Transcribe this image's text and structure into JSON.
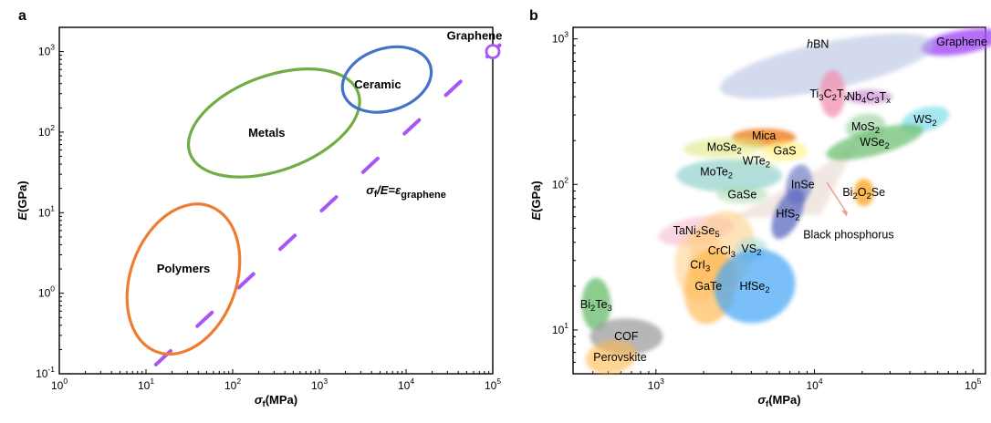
{
  "chart_data": [
    {
      "type": "scatter",
      "panel_label": "a",
      "xlabel": "σf(MPa)",
      "ylabel": "E(GPa)",
      "x_scale": "log",
      "y_scale": "log",
      "xlim": [
        1,
        100000
      ],
      "ylim": [
        0.1,
        2000
      ],
      "x_ticks": [
        {
          "value": 1,
          "base": "10",
          "exp": "0"
        },
        {
          "value": 10,
          "base": "10",
          "exp": "1"
        },
        {
          "value": 100,
          "base": "10",
          "exp": "2"
        },
        {
          "value": 1000,
          "base": "10",
          "exp": "3"
        },
        {
          "value": 10000,
          "base": "10",
          "exp": "4"
        },
        {
          "value": 100000,
          "base": "10",
          "exp": "5"
        }
      ],
      "y_ticks": [
        {
          "value": 0.1,
          "base": "10",
          "exp": "-1"
        },
        {
          "value": 1,
          "base": "10",
          "exp": "0"
        },
        {
          "value": 10,
          "base": "10",
          "exp": "1"
        },
        {
          "value": 100,
          "base": "10",
          "exp": "2"
        },
        {
          "value": 1000,
          "base": "10",
          "exp": "3"
        }
      ],
      "regions": [
        {
          "name": "Polymers",
          "x_center": 27,
          "y_center": 1.5,
          "color": "#ed7d31"
        },
        {
          "name": "Metals",
          "x_center": 300,
          "y_center": 130,
          "color": "#70ad47"
        },
        {
          "name": "Ceramic",
          "x_center": 6000,
          "y_center": 450,
          "color": "#4472c4"
        }
      ],
      "points": [
        {
          "name": "Graphene",
          "x": 100000,
          "y": 1000,
          "color": "#a855f7"
        }
      ],
      "reference_line": {
        "label_main": "σf/E=ε",
        "label_sub": "graphene",
        "color": "#a855f7",
        "from": [
          13,
          0.13
        ],
        "to": [
          120000,
          1200
        ]
      }
    },
    {
      "type": "scatter",
      "panel_label": "b",
      "xlabel": "σf(MPa)",
      "ylabel": "E(GPa)",
      "x_scale": "log",
      "y_scale": "log",
      "xlim": [
        300,
        120000
      ],
      "ylim": [
        5,
        1200
      ],
      "x_ticks": [
        {
          "value": 1000,
          "base": "10",
          "exp": "3"
        },
        {
          "value": 10000,
          "base": "10",
          "exp": "4"
        },
        {
          "value": 100000,
          "base": "10",
          "exp": "5"
        }
      ],
      "y_ticks": [
        {
          "value": 10,
          "base": "10",
          "exp": "1"
        },
        {
          "value": 100,
          "base": "10",
          "exp": "2"
        },
        {
          "value": 1000,
          "base": "10",
          "exp": "3"
        }
      ],
      "materials": [
        {
          "label": "Graphene",
          "x": 85000,
          "y": 950,
          "color": "#a855f7"
        },
        {
          "label": "hBN",
          "x": 12000,
          "y": 650,
          "color": "#b0bde0"
        },
        {
          "label": "Ti3C2Tx",
          "x": 13000,
          "y": 420,
          "color": "#f48fb1"
        },
        {
          "label": "Nb4C3Tx",
          "x": 22000,
          "y": 400,
          "color": "#ce93d8"
        },
        {
          "label": "MoS2",
          "x": 21000,
          "y": 250,
          "color": "#a5d6a7"
        },
        {
          "label": "WS2",
          "x": 50000,
          "y": 280,
          "color": "#80deea"
        },
        {
          "label": "WSe2",
          "x": 24000,
          "y": 195,
          "color": "#66bb6a"
        },
        {
          "label": "Mica",
          "x": 4800,
          "y": 210,
          "color": "#ef6c00"
        },
        {
          "label": "MoSe2",
          "x": 2700,
          "y": 180,
          "color": "#dce775"
        },
        {
          "label": "GaS",
          "x": 6500,
          "y": 170,
          "color": "#fff176"
        },
        {
          "label": "WTe2",
          "x": 4300,
          "y": 145,
          "color": "#fff9c4"
        },
        {
          "label": "MoTe2",
          "x": 2900,
          "y": 115,
          "color": "#80cbc4"
        },
        {
          "label": "GaSe",
          "x": 3500,
          "y": 85,
          "color": "#a5d6a7"
        },
        {
          "label": "InSe",
          "x": 8000,
          "y": 100,
          "color": "#7986cb"
        },
        {
          "label": "Bi2O2Se",
          "x": 20500,
          "y": 88,
          "color": "#f9a825"
        },
        {
          "label": "HfS2",
          "x": 6800,
          "y": 63,
          "color": "#5c6bc0"
        },
        {
          "label": "TaNi2Se5",
          "x": 1800,
          "y": 48,
          "color": "#f8bbd0"
        },
        {
          "label": "CrCl3",
          "x": 2600,
          "y": 35,
          "color": "#ffcc80"
        },
        {
          "label": "VS2",
          "x": 4000,
          "y": 36,
          "color": "#b2dfdb"
        },
        {
          "label": "CrI3",
          "x": 1900,
          "y": 28,
          "color": "#ffcc80"
        },
        {
          "label": "GaTe",
          "x": 2200,
          "y": 20,
          "color": "#ffb74d"
        },
        {
          "label": "HfSe2",
          "x": 4200,
          "y": 20,
          "color": "#42a5f5"
        },
        {
          "label": "Bi2Te3",
          "x": 420,
          "y": 15,
          "color": "#66bb6a"
        },
        {
          "label": "COF",
          "x": 650,
          "y": 9,
          "color": "#9e9e9e"
        },
        {
          "label": "Perovskite",
          "x": 520,
          "y": 6.5,
          "color": "#ffb74d"
        }
      ],
      "annotation": {
        "text": "Black phosphorus",
        "x": 14000,
        "y": 52
      }
    }
  ]
}
